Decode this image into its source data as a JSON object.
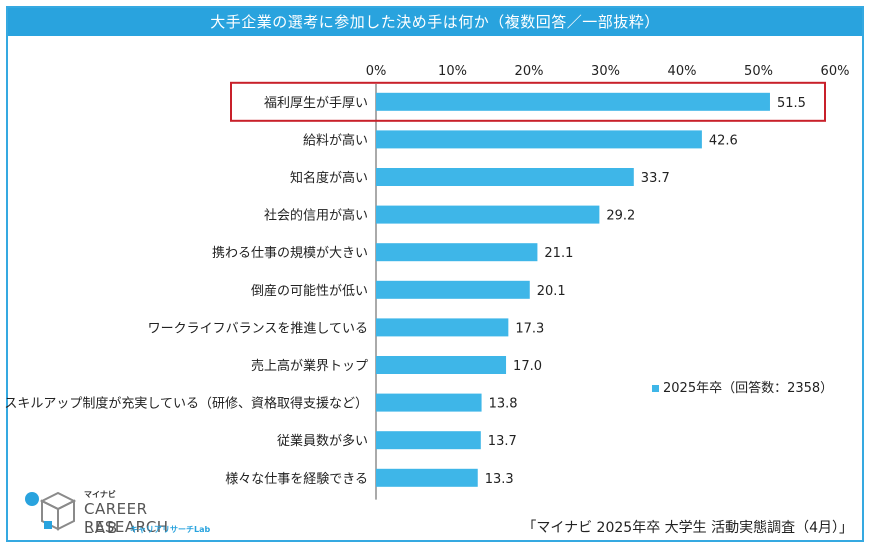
{
  "title": "大手企業の選考に参加した決め手は何か（複数回答／一部抜粋）",
  "source": "「マイナビ 2025年卒 大学生 活動実態調査（4月）」",
  "logo": {
    "small": "マイナビ",
    "main": "CAREER RESEARCH",
    "lab": "LAB",
    "kana": "キャリアリサーチLab"
  },
  "colors": {
    "bar": "#3eb6e8",
    "title_bg": "#29a3de",
    "highlight": "#c8202a"
  },
  "chart_data": {
    "type": "bar",
    "orientation": "horizontal",
    "xlim": [
      0,
      60
    ],
    "ticks": [
      "0%",
      "10%",
      "20%",
      "30%",
      "40%",
      "50%",
      "60%"
    ],
    "grid": true,
    "legend": "2025年卒（回答数：2358）",
    "legend_position": "right",
    "highlighted_category": "福利厚生が手厚い",
    "categories": [
      "福利厚生が手厚い",
      "給料が高い",
      "知名度が高い",
      "社会的信用が高い",
      "携わる仕事の規模が大きい",
      "倒産の可能性が低い",
      "ワークライフバランスを推進している",
      "売上高が業界トップ",
      "スキルアップ制度が充実している（研修、資格取得支援など）",
      "従業員数が多い",
      "様々な仕事を経験できる"
    ],
    "values": [
      51.5,
      42.6,
      33.7,
      29.2,
      21.1,
      20.1,
      17.3,
      17.0,
      13.8,
      13.7,
      13.3
    ],
    "value_labels": [
      "51.5",
      "42.6",
      "33.7",
      "29.2",
      "21.1",
      "20.1",
      "17.3",
      "17.0",
      "13.8",
      "13.7",
      "13.3"
    ]
  }
}
